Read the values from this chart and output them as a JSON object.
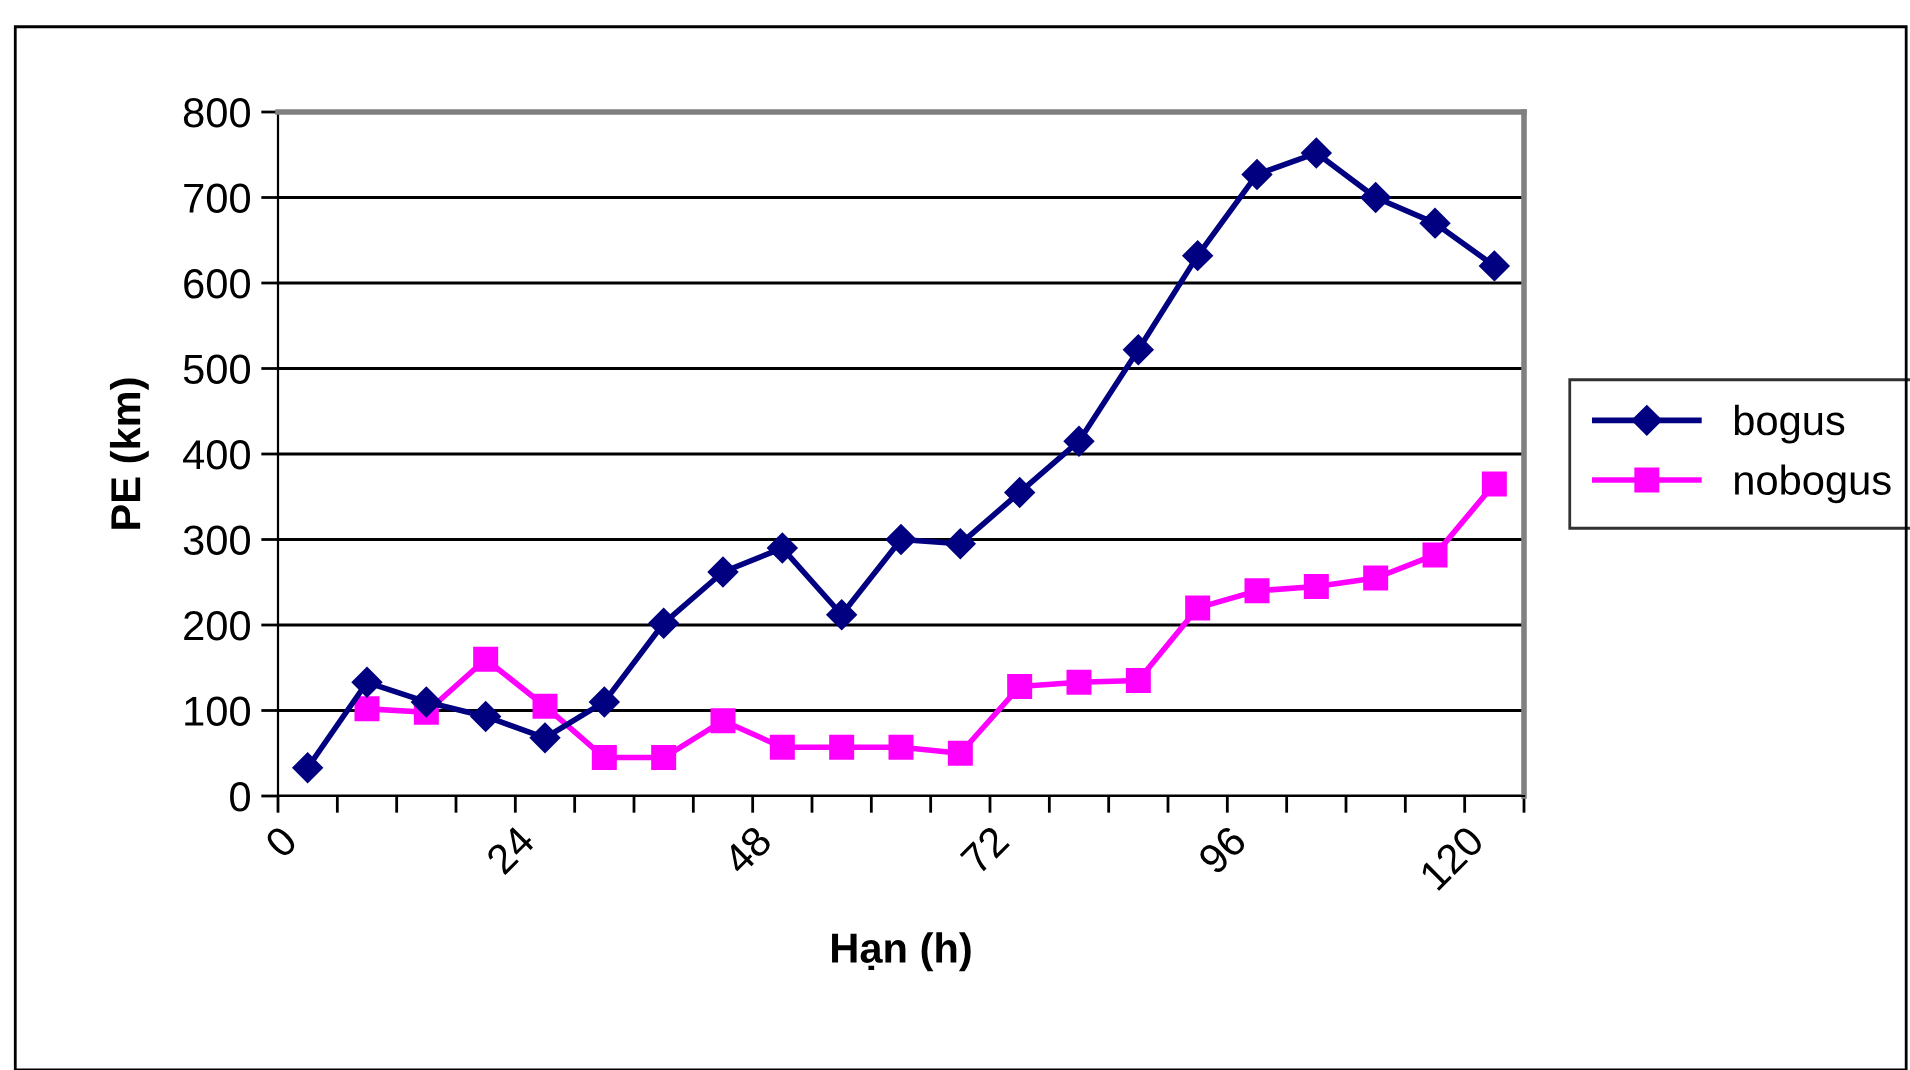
{
  "chart_data": {
    "type": "line",
    "xlabel": "Hạn (h)",
    "ylabel": "PE (km)",
    "x": [
      3,
      9,
      15,
      21,
      27,
      33,
      39,
      45,
      51,
      57,
      63,
      69,
      75,
      81,
      87,
      93,
      99,
      105,
      111,
      117,
      123
    ],
    "series": [
      {
        "name": "bogus",
        "color": "#000080",
        "marker": "diamond",
        "values": [
          33,
          133,
          110,
          93,
          68,
          110,
          202,
          262,
          290,
          212,
          300,
          295,
          355,
          415,
          522,
          632,
          727,
          752,
          700,
          670,
          620
        ]
      },
      {
        "name": "nobogus",
        "color": "#ff00ff",
        "marker": "square",
        "values": [
          null,
          102,
          98,
          160,
          105,
          45,
          45,
          88,
          57,
          57,
          57,
          50,
          128,
          133,
          135,
          220,
          240,
          245,
          255,
          282,
          365
        ]
      }
    ],
    "xlim": [
      0,
      126
    ],
    "xticks": [
      0,
      {
        "value": 6,
        "label": null
      },
      {
        "value": 12,
        "label": null
      },
      {
        "value": 18,
        "label": null
      },
      24,
      {
        "value": 30,
        "label": null
      },
      {
        "value": 36,
        "label": null
      },
      {
        "value": 42,
        "label": null
      },
      48,
      {
        "value": 54,
        "label": null
      },
      {
        "value": 60,
        "label": null
      },
      {
        "value": 66,
        "label": null
      },
      72,
      {
        "value": 78,
        "label": null
      },
      {
        "value": 84,
        "label": null
      },
      {
        "value": 90,
        "label": null
      },
      96,
      {
        "value": 102,
        "label": null
      },
      {
        "value": 108,
        "label": null
      },
      {
        "value": 114,
        "label": null
      },
      120,
      {
        "value": 126,
        "label": null
      }
    ],
    "ylim": [
      0,
      800
    ],
    "yticks": [
      0,
      100,
      200,
      300,
      400,
      500,
      600,
      700,
      800
    ],
    "grid": "y",
    "legend": "right",
    "line_style": "solid"
  }
}
